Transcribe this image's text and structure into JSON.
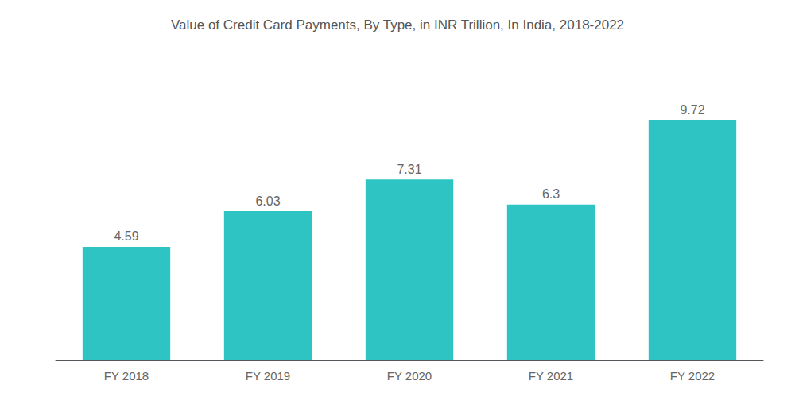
{
  "chart_data": {
    "type": "bar",
    "title": "Value of Credit Card Payments, By Type, in INR Trillion, In India, 2018-2022",
    "categories": [
      "FY 2018",
      "FY 2019",
      "FY 2020",
      "FY 2021",
      "FY 2022"
    ],
    "values": [
      4.59,
      6.03,
      7.31,
      6.3,
      9.72
    ],
    "color": "#2EC4C4",
    "ylim": [
      0,
      12.0
    ],
    "yticks": [],
    "grid": false,
    "data_labels": true,
    "tick_labels": "x"
  }
}
